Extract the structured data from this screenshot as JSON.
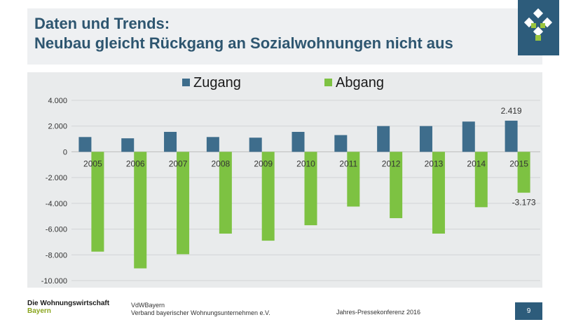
{
  "header": {
    "title_line1": "Daten und Trends:",
    "title_line2": "Neubau gleicht Rückgang an Sozialwohnungen nicht aus"
  },
  "footer": {
    "org_line1": "Die Wohnungswirtschaft",
    "org_line2": "Bayern",
    "assoc_line1": "VdWBayern",
    "assoc_line2": "Verband bayerischer Wohnungsunternehmen e.V.",
    "conference": "Jahres-Pressekonferenz 2016",
    "page_number": "9"
  },
  "colors": {
    "zugang": "#3e6d8c",
    "abgang": "#7dc242",
    "plot_bg": "#e9ebec",
    "title": "#2e5670",
    "brand": "#2d5c7b"
  },
  "chart_data": {
    "type": "bar",
    "categories": [
      "2005",
      "2006",
      "2007",
      "2008",
      "2009",
      "2010",
      "2011",
      "2012",
      "2013",
      "2014",
      "2015"
    ],
    "series": [
      {
        "name": "Zugang",
        "values": [
          1150,
          1050,
          1550,
          1150,
          1100,
          1550,
          1300,
          2000,
          2000,
          2350,
          2419
        ]
      },
      {
        "name": "Abgang",
        "values": [
          -7750,
          -9050,
          -7950,
          -6350,
          -6900,
          -5700,
          -4250,
          -5150,
          -6350,
          -4300,
          -3173
        ]
      }
    ],
    "ylim": [
      -10000,
      4000
    ],
    "yticks": [
      4000,
      2000,
      0,
      -2000,
      -4000,
      -6000,
      -8000,
      -10000
    ],
    "ytick_labels": [
      "4.000",
      "2.000",
      "0",
      "-2.000",
      "-4.000",
      "-6.000",
      "-8.000",
      "-10.000"
    ],
    "data_labels": [
      {
        "series": "Zugang",
        "category": "2015",
        "text": "2.419"
      },
      {
        "series": "Abgang",
        "category": "2015",
        "text": "-3.173"
      }
    ],
    "legend_position": "top",
    "grid": true
  }
}
